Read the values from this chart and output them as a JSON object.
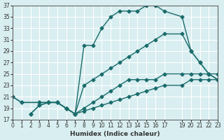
{
  "xlabel": "Humidex (Indice chaleur)",
  "ylabel": "",
  "bg_color": "#d8eef0",
  "grid_color": "#ffffff",
  "line_color": "#1a6b6b",
  "xlim": [
    0,
    23
  ],
  "ylim": [
    17,
    37
  ],
  "yticks": [
    17,
    19,
    21,
    23,
    25,
    27,
    29,
    31,
    33,
    35,
    37
  ],
  "xticks": [
    0,
    1,
    2,
    3,
    4,
    5,
    6,
    7,
    8,
    9,
    10,
    11,
    12,
    13,
    14,
    15,
    16,
    17,
    19,
    20,
    21,
    22,
    23
  ],
  "lines": [
    {
      "x": [
        0,
        1,
        3,
        4,
        5,
        6,
        7,
        8,
        9,
        10,
        11,
        12,
        13,
        14,
        15,
        16,
        17,
        19,
        20,
        21,
        22,
        23
      ],
      "y": [
        21,
        20,
        20,
        20,
        20,
        19,
        18,
        30,
        30,
        33,
        35,
        36,
        36,
        36,
        37,
        37,
        36,
        35,
        29,
        27,
        25,
        24
      ]
    },
    {
      "x": [
        0,
        1,
        3,
        4,
        5,
        6,
        7,
        8,
        9,
        10,
        11,
        12,
        13,
        14,
        15,
        16,
        17,
        19,
        20,
        21,
        22,
        23
      ],
      "y": [
        21,
        20,
        20,
        20,
        20,
        19,
        18,
        23,
        24,
        25,
        26,
        27,
        28,
        29,
        30,
        31,
        32,
        32,
        29,
        27,
        25,
        24
      ]
    },
    {
      "x": [
        2,
        3,
        4,
        5,
        6,
        7,
        8,
        9,
        10,
        11,
        12,
        13,
        14,
        15,
        16,
        17,
        19,
        20,
        21,
        22,
        23
      ],
      "y": [
        18,
        19.5,
        20,
        20,
        19,
        18,
        19,
        20,
        21,
        22,
        23,
        24,
        24,
        24,
        24,
        25,
        25,
        25,
        25,
        25,
        25
      ]
    },
    {
      "x": [
        2,
        3,
        4,
        5,
        6,
        7,
        8,
        9,
        10,
        11,
        12,
        13,
        14,
        15,
        16,
        17,
        19,
        20,
        21,
        22,
        23
      ],
      "y": [
        18,
        19.5,
        20,
        20,
        19,
        18,
        18.5,
        19,
        19.5,
        20,
        20.5,
        21,
        21.5,
        22,
        22.5,
        23,
        23,
        24,
        24,
        24,
        24
      ]
    }
  ]
}
